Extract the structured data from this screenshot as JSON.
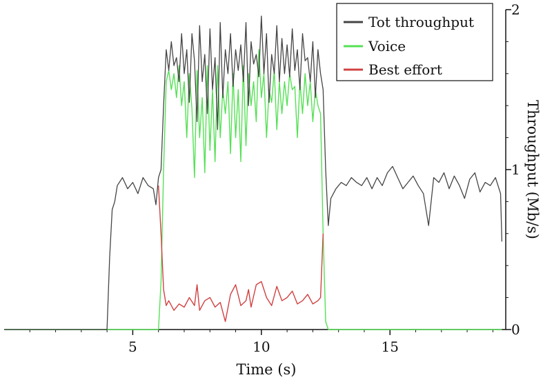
{
  "chart_data": {
    "type": "line",
    "xlabel": "Time (s)",
    "ylabel": "Throughput (Mb/s)",
    "xlim": [
      0,
      19.5
    ],
    "ylim": [
      0,
      2
    ],
    "x_ticks": [
      5,
      10,
      15
    ],
    "x_tick_labels": [
      "5",
      "10",
      "15"
    ],
    "y_ticks": [
      0,
      1,
      2
    ],
    "y_tick_labels": [
      "0",
      "1",
      "2"
    ],
    "y_axis_side": "right",
    "legend_position": "top-right",
    "grid": false,
    "series": [
      {
        "name": "Tot throughput",
        "color": "#444444",
        "x": [
          0,
          4.0,
          4.1,
          4.2,
          4.3,
          4.4,
          4.6,
          4.8,
          5.0,
          5.2,
          5.4,
          5.6,
          5.8,
          5.9,
          6.0,
          6.1,
          6.2,
          6.3,
          6.4,
          6.5,
          6.6,
          6.7,
          6.8,
          6.9,
          7.0,
          7.1,
          7.2,
          7.3,
          7.4,
          7.5,
          7.6,
          7.7,
          7.8,
          7.9,
          8.0,
          8.1,
          8.2,
          8.3,
          8.4,
          8.5,
          8.6,
          8.7,
          8.8,
          8.9,
          9.0,
          9.1,
          9.2,
          9.3,
          9.4,
          9.5,
          9.6,
          9.7,
          9.8,
          9.9,
          10.0,
          10.1,
          10.2,
          10.3,
          10.4,
          10.5,
          10.6,
          10.7,
          10.8,
          10.9,
          11.0,
          11.1,
          11.2,
          11.3,
          11.4,
          11.5,
          11.6,
          11.7,
          11.8,
          11.9,
          12.0,
          12.1,
          12.2,
          12.3,
          12.4,
          12.5,
          12.6,
          12.7,
          12.9,
          13.1,
          13.3,
          13.5,
          13.7,
          13.9,
          14.1,
          14.3,
          14.5,
          14.7,
          14.9,
          15.1,
          15.3,
          15.5,
          15.7,
          15.9,
          16.1,
          16.3,
          16.5,
          16.7,
          16.9,
          17.1,
          17.3,
          17.5,
          17.7,
          17.9,
          18.1,
          18.3,
          18.5,
          18.7,
          18.9,
          19.1,
          19.3,
          19.35
        ],
        "y": [
          0,
          0,
          0.45,
          0.75,
          0.8,
          0.9,
          0.95,
          0.88,
          0.92,
          0.85,
          0.95,
          0.9,
          0.88,
          0.78,
          0.95,
          1.0,
          1.4,
          1.75,
          1.62,
          1.8,
          1.65,
          1.7,
          1.55,
          1.85,
          1.6,
          1.75,
          1.42,
          1.85,
          1.68,
          1.3,
          1.9,
          1.55,
          1.72,
          1.35,
          1.88,
          1.5,
          1.7,
          1.25,
          1.92,
          1.45,
          1.75,
          1.6,
          1.85,
          1.52,
          1.75,
          1.62,
          1.78,
          1.55,
          1.92,
          1.4,
          1.8,
          1.66,
          1.72,
          1.58,
          1.96,
          1.6,
          1.85,
          1.42,
          1.72,
          1.6,
          1.9,
          1.55,
          1.82,
          1.6,
          1.78,
          1.58,
          1.88,
          1.62,
          1.75,
          1.5,
          1.85,
          1.68,
          1.7,
          1.55,
          1.8,
          1.45,
          1.75,
          1.6,
          1.5,
          1.0,
          0.65,
          0.82,
          0.88,
          0.92,
          0.9,
          0.95,
          0.92,
          0.9,
          0.95,
          0.88,
          0.95,
          0.9,
          0.98,
          1.02,
          0.95,
          0.88,
          0.92,
          0.96,
          0.9,
          0.85,
          0.65,
          0.95,
          0.92,
          0.98,
          0.88,
          0.96,
          0.9,
          0.82,
          0.94,
          0.98,
          0.86,
          0.92,
          0.9,
          0.95,
          0.85,
          0.55
        ]
      },
      {
        "name": "Voice",
        "color": "#55e055",
        "x": [
          0,
          6.0,
          6.1,
          6.2,
          6.3,
          6.4,
          6.5,
          6.6,
          6.7,
          6.8,
          6.9,
          7.0,
          7.1,
          7.2,
          7.3,
          7.4,
          7.5,
          7.6,
          7.7,
          7.8,
          7.9,
          8.0,
          8.1,
          8.2,
          8.3,
          8.4,
          8.5,
          8.6,
          8.7,
          8.8,
          8.9,
          9.0,
          9.1,
          9.2,
          9.3,
          9.4,
          9.5,
          9.6,
          9.7,
          9.8,
          9.9,
          10.0,
          10.1,
          10.2,
          10.3,
          10.4,
          10.5,
          10.6,
          10.7,
          10.8,
          10.9,
          11.0,
          11.1,
          11.2,
          11.3,
          11.4,
          11.5,
          11.6,
          11.7,
          11.8,
          11.9,
          12.0,
          12.1,
          12.2,
          12.3,
          12.4,
          12.5,
          12.6,
          19.35
        ],
        "y": [
          0,
          0,
          0.3,
          1.0,
          1.55,
          1.62,
          1.5,
          1.6,
          1.45,
          1.65,
          1.4,
          1.55,
          1.2,
          1.6,
          1.38,
          0.95,
          1.62,
          1.2,
          1.45,
          0.98,
          1.65,
          1.12,
          1.5,
          1.05,
          1.65,
          1.2,
          1.5,
          1.35,
          1.55,
          1.1,
          1.6,
          1.2,
          1.5,
          1.05,
          1.65,
          1.15,
          1.6,
          1.4,
          1.55,
          1.3,
          1.75,
          1.45,
          1.6,
          1.2,
          1.5,
          1.42,
          1.62,
          1.25,
          1.55,
          1.35,
          1.55,
          1.4,
          1.6,
          1.5,
          1.52,
          1.2,
          1.55,
          1.35,
          1.6,
          1.4,
          1.55,
          1.3,
          1.5,
          1.4,
          1.35,
          0.6,
          0.05,
          0,
          0
        ]
      },
      {
        "name": "Best effort",
        "color": "#d04040",
        "x": [
          6.0,
          6.1,
          6.2,
          6.3,
          6.4,
          6.6,
          6.8,
          7.0,
          7.2,
          7.4,
          7.5,
          7.6,
          7.8,
          8.0,
          8.2,
          8.4,
          8.6,
          8.8,
          9.0,
          9.2,
          9.4,
          9.5,
          9.6,
          9.8,
          10.0,
          10.2,
          10.4,
          10.6,
          10.8,
          11.0,
          11.2,
          11.4,
          11.6,
          11.8,
          12.0,
          12.2,
          12.3,
          12.4
        ],
        "y": [
          0.9,
          0.6,
          0.25,
          0.15,
          0.18,
          0.12,
          0.16,
          0.14,
          0.2,
          0.15,
          0.28,
          0.12,
          0.18,
          0.2,
          0.14,
          0.17,
          0.05,
          0.22,
          0.28,
          0.15,
          0.18,
          0.25,
          0.14,
          0.28,
          0.3,
          0.2,
          0.15,
          0.27,
          0.18,
          0.2,
          0.24,
          0.16,
          0.18,
          0.22,
          0.16,
          0.18,
          0.2,
          0.6
        ]
      }
    ]
  }
}
